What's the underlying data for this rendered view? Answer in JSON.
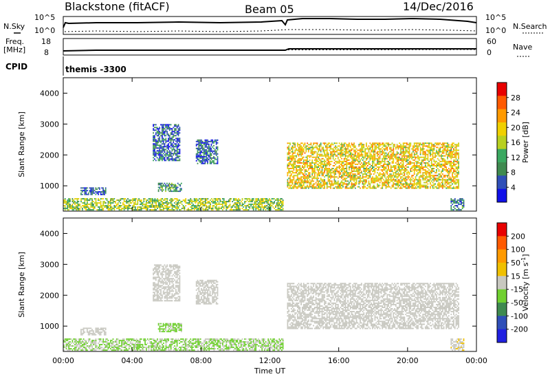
{
  "header": {
    "station": "Blackstone (fitACF)",
    "beam": "Beam 05",
    "date": "14/Dec/2016"
  },
  "sky_panel": {
    "left_label": "N.Sky",
    "right_label": "N.Search",
    "left_ticks": [
      "10^5",
      "10^0"
    ],
    "right_ticks": [
      "10^5",
      "10^0"
    ]
  },
  "freq_panel": {
    "left_label_1": "Freq.",
    "left_label_2": "[MHz]",
    "right_label": "Nave",
    "left_ticks": [
      "18",
      "8"
    ],
    "right_ticks": [
      "60",
      "0"
    ]
  },
  "cpid": {
    "label": "CPID",
    "value": "themis -3300"
  },
  "colors": {
    "power": [
      "#1010e8",
      "#2f4fb8",
      "#3f8a50",
      "#3aa860",
      "#b8d020",
      "#f0d000",
      "#ff9a00",
      "#ff5a00",
      "#e80000"
    ],
    "velocity": [
      "#2020e0",
      "#2f4fb8",
      "#3f8a50",
      "#70d030",
      "#c8c8c0",
      "#f0c000",
      "#ff9a00",
      "#ff5a00",
      "#e80000"
    ]
  },
  "chart_data": [
    {
      "type": "heatmap",
      "quantity": "power",
      "ylabel": "Slant Range [km]",
      "ylim": [
        180,
        4500
      ],
      "yticks": [
        "1000",
        "2000",
        "3000",
        "4000"
      ],
      "xlim_hours": [
        0,
        24
      ],
      "xticks": [
        "00:00",
        "04:00",
        "08:00",
        "12:00",
        "16:00",
        "20:00",
        "00:00"
      ],
      "colorbar": {
        "label": "Power [dB]",
        "ticks": [
          "28",
          "24",
          "20",
          "16",
          "12",
          "8",
          "4"
        ],
        "range": [
          0,
          30
        ]
      },
      "regions": [
        {
          "from_hour": 0.0,
          "to_hour": 12.8,
          "range_km": [
            200,
            600
          ],
          "value_db": 14
        },
        {
          "from_hour": 1.0,
          "to_hour": 2.5,
          "range_km": [
            700,
            950
          ],
          "value_db": 6
        },
        {
          "from_hour": 5.5,
          "to_hour": 6.9,
          "range_km": [
            800,
            1100
          ],
          "value_db": 10
        },
        {
          "from_hour": 5.2,
          "to_hour": 6.8,
          "range_km": [
            1800,
            3000
          ],
          "value_db": 6
        },
        {
          "from_hour": 7.7,
          "to_hour": 9.0,
          "range_km": [
            1700,
            2500
          ],
          "value_db": 6
        },
        {
          "from_hour": 13.0,
          "to_hour": 23.0,
          "range_km": [
            900,
            2400
          ],
          "value_db": 18
        },
        {
          "from_hour": 22.5,
          "to_hour": 23.3,
          "range_km": [
            200,
            600
          ],
          "value_db": 8
        }
      ]
    },
    {
      "type": "heatmap",
      "quantity": "velocity",
      "ylabel": "Slant Range [km]",
      "xlabel": "Time UT",
      "ylim": [
        180,
        4500
      ],
      "yticks": [
        "1000",
        "2000",
        "3000",
        "4000"
      ],
      "xlim_hours": [
        0,
        24
      ],
      "xticks": [
        "00:00",
        "04:00",
        "08:00",
        "12:00",
        "16:00",
        "20:00",
        "00:00"
      ],
      "colorbar": {
        "label": "Velocity [m s^-1]",
        "ticks": [
          "200",
          "100",
          "50",
          "15",
          "-15",
          "-50",
          "-100",
          "-200"
        ],
        "range": [
          -250,
          250
        ]
      },
      "regions": [
        {
          "from_hour": 0.0,
          "to_hour": 12.8,
          "range_km": [
            200,
            600
          ],
          "value_ms": -30
        },
        {
          "from_hour": 1.0,
          "to_hour": 2.5,
          "range_km": [
            700,
            950
          ],
          "value_ms": 0
        },
        {
          "from_hour": 5.5,
          "to_hour": 6.9,
          "range_km": [
            800,
            1100
          ],
          "value_ms": -40
        },
        {
          "from_hour": 5.2,
          "to_hour": 6.8,
          "range_km": [
            1800,
            3000
          ],
          "value_ms": 0
        },
        {
          "from_hour": 7.7,
          "to_hour": 9.0,
          "range_km": [
            1700,
            2500
          ],
          "value_ms": 0
        },
        {
          "from_hour": 13.0,
          "to_hour": 23.0,
          "range_km": [
            900,
            2400
          ],
          "value_ms": 0
        },
        {
          "from_hour": 22.5,
          "to_hour": 23.3,
          "range_km": [
            200,
            600
          ],
          "value_ms": 20
        }
      ]
    }
  ]
}
